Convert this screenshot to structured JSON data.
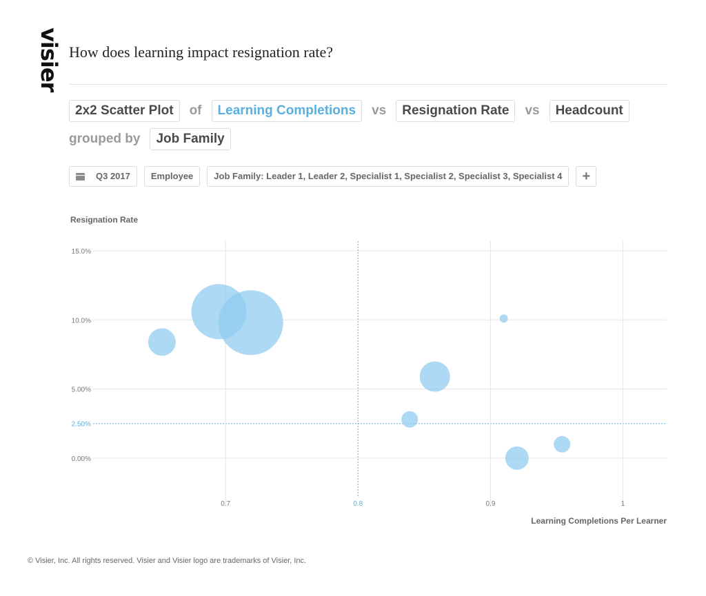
{
  "brand": {
    "logo_text": "visier"
  },
  "question": "How does learning impact resignation rate?",
  "query": {
    "chart_type_label": "2x2 Scatter Plot",
    "of_label": "of",
    "metric_x": "Learning Completions",
    "vs_label_1": "vs",
    "metric_y": "Resignation Rate",
    "vs_label_2": "vs",
    "metric_size": "Headcount",
    "grouped_by_label": "grouped by",
    "group": "Job Family"
  },
  "filters": {
    "period": "Q3 2017",
    "population": "Employee",
    "job_family_filter": "Job Family: Leader 1, Leader 2, Specialist 1, Specialist 2, Specialist 3, Specialist 4",
    "add_label": "+"
  },
  "chart_data": {
    "type": "scatter",
    "xlabel": "Learning Completions Per Learner",
    "ylabel": "Resignation Rate",
    "xlim": [
      0.6,
      1.033
    ],
    "ylim": [
      -2.5,
      15.2
    ],
    "x_ticks": [
      "0.7",
      "0.8",
      "0.9",
      "1"
    ],
    "x_tick_values": [
      0.7,
      0.8,
      0.9,
      1.0
    ],
    "y_ticks": [
      "0.00%",
      "2.50%",
      "5.00%",
      "10.0%",
      "15.0%"
    ],
    "y_tick_values": [
      0,
      2.5,
      5,
      10,
      15
    ],
    "quadrant_x": 0.8,
    "quadrant_y": 2.5,
    "grid": true,
    "bubble_color": "#8ecbf0",
    "accent_color": "#5aafdf",
    "points": [
      {
        "x": 0.652,
        "y": 8.4,
        "size": 20
      },
      {
        "x": 0.695,
        "y": 10.6,
        "size": 40
      },
      {
        "x": 0.719,
        "y": 9.8,
        "size": 47
      },
      {
        "x": 0.839,
        "y": 2.8,
        "size": 12
      },
      {
        "x": 0.858,
        "y": 5.9,
        "size": 22
      },
      {
        "x": 0.91,
        "y": 10.1,
        "size": 6
      },
      {
        "x": 0.92,
        "y": 0.0,
        "size": 17
      },
      {
        "x": 0.954,
        "y": 1.0,
        "size": 12
      }
    ]
  },
  "footer": "© Visier, Inc. All rights reserved. Visier and Visier logo are trademarks of Visier, Inc."
}
